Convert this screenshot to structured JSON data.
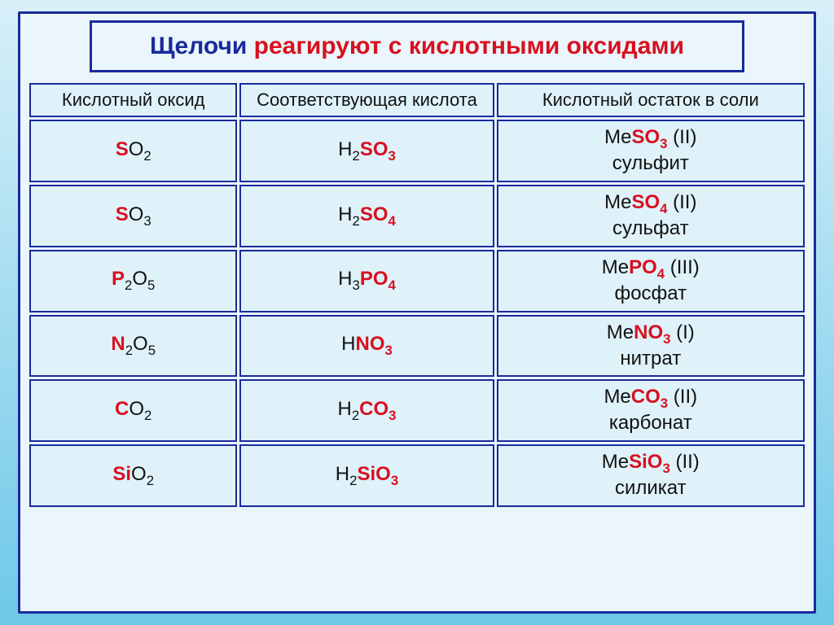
{
  "title": {
    "part1": "Щелочи ",
    "part2": "реагируют с кислотными оксидами"
  },
  "headers": {
    "oxide": "Кислотный оксид",
    "acid": "Соответствующая кислота",
    "residue": "Кислотный остаток в соли"
  },
  "rows": [
    {
      "oxide_pre": "",
      "oxide_acc": "S",
      "oxide_post": "O",
      "oxide_sub": "2",
      "oxide_presub": "",
      "acid_h": "H",
      "acid_hsub": "2",
      "acid_acc": "SO",
      "acid_sub": "3",
      "acid_post": "",
      "salt_pre": "Me",
      "salt_acc": "SO",
      "salt_sub": "3",
      "salt_val": " (II)",
      "salt_name": "сульфит"
    },
    {
      "oxide_pre": "",
      "oxide_acc": "S",
      "oxide_post": "O",
      "oxide_sub": "3",
      "oxide_presub": "",
      "acid_h": "H",
      "acid_hsub": "2",
      "acid_acc": "SO",
      "acid_sub": "4",
      "acid_post": "",
      "salt_pre": "Me",
      "salt_acc": "SO",
      "salt_sub": "4",
      "salt_val": " (II)",
      "salt_name": "сульфат"
    },
    {
      "oxide_pre": "",
      "oxide_acc": "P",
      "oxide_presub": "2",
      "oxide_post": "O",
      "oxide_sub": "5",
      "acid_h": "H",
      "acid_hsub": "3",
      "acid_acc": "PO",
      "acid_sub": "4",
      "acid_post": "",
      "salt_pre": "Me",
      "salt_acc": "PO",
      "salt_sub": "4",
      "salt_val": " (III)",
      "salt_name": "фосфат"
    },
    {
      "oxide_pre": "",
      "oxide_acc": "N",
      "oxide_presub": "2",
      "oxide_post": "O",
      "oxide_sub": "5",
      "acid_h": "H",
      "acid_hsub": "",
      "acid_acc": "NO",
      "acid_sub": "3",
      "acid_post": "",
      "salt_pre": "Me",
      "salt_acc": "NO",
      "salt_sub": "3",
      "salt_val": " (I)",
      "salt_name": "нитрат"
    },
    {
      "oxide_pre": "",
      "oxide_acc": "C",
      "oxide_post": "O",
      "oxide_sub": "2",
      "oxide_presub": "",
      "acid_h": "H",
      "acid_hsub": "2",
      "acid_acc": "CO",
      "acid_sub": "3",
      "acid_post": "",
      "salt_pre": "Me",
      "salt_acc": "CO",
      "salt_sub": "3",
      "salt_val": " (II)",
      "salt_name": "карбонат"
    },
    {
      "oxide_pre": "",
      "oxide_acc": "Si",
      "oxide_post": "O",
      "oxide_sub": "2",
      "oxide_presub": "",
      "acid_h": "H",
      "acid_hsub": "2",
      "acid_acc": "SiO",
      "acid_sub": "3",
      "acid_post": "",
      "salt_pre": "Me",
      "salt_acc": "SiO",
      "salt_sub": "3",
      "salt_val": " (II)",
      "salt_name": "силикат"
    }
  ],
  "styling": {
    "outer_border_color": "#1a2a9a",
    "bg_gradient_top": "#d8f0f8",
    "bg_gradient_bottom": "#6dc8e8",
    "panel_bg": "#eaf6fb",
    "cell_bg": "#dff2f9",
    "accent_color": "#d81020",
    "title_color": "#1a2a9a",
    "text_color": "#121212",
    "title_fontsize": 30,
    "header_fontsize": 22,
    "cell_fontsize": 24
  }
}
